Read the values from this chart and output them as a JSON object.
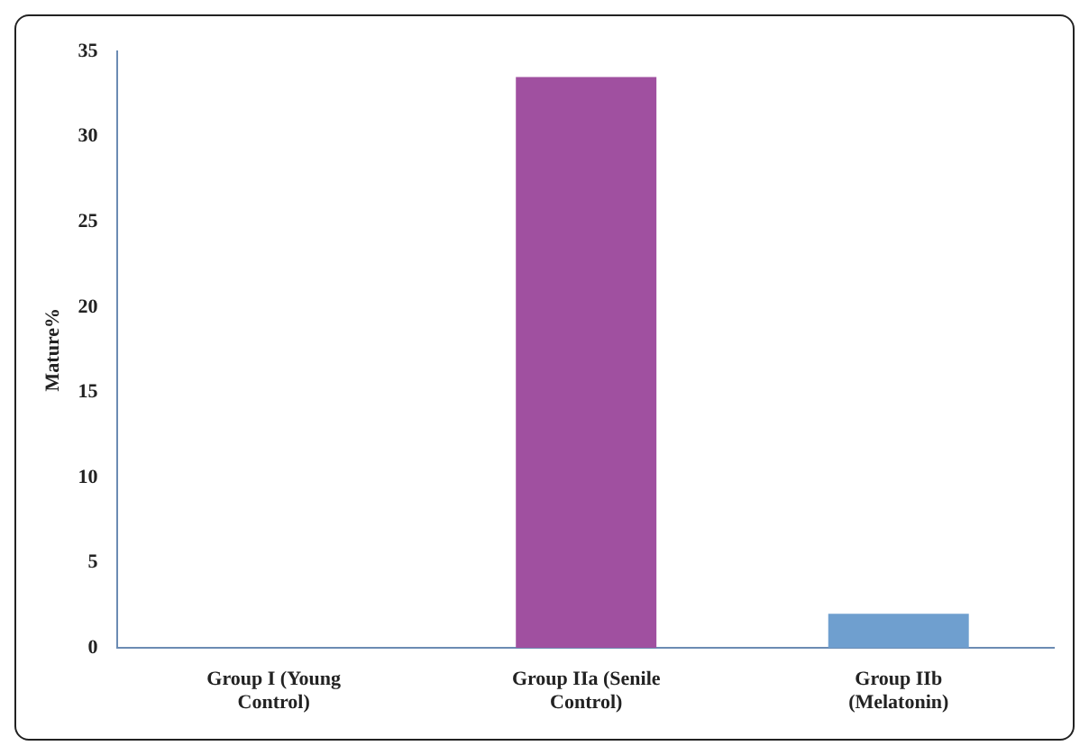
{
  "chart_data": {
    "type": "bar",
    "ylabel": "Mature%",
    "categories": [
      "Group I (Young Control)",
      "Group IIa (Senile Control)",
      "Group IIb (Melatonin)"
    ],
    "values": [
      0,
      33.5,
      2
    ],
    "colors": [
      "#7f6f9f",
      "#a050a0",
      "#6f9fcf"
    ],
    "ylim": [
      0,
      35
    ],
    "yticks": [
      0,
      5,
      10,
      15,
      20,
      25,
      30,
      35
    ],
    "grid": false,
    "legend": false
  }
}
